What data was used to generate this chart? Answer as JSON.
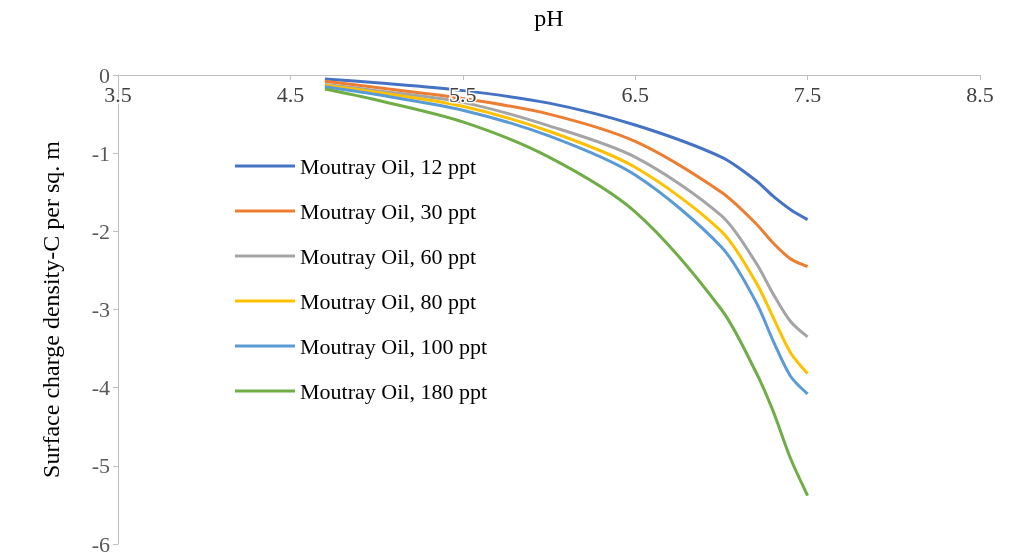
{
  "chart_data": {
    "type": "line",
    "xlabel": "pH",
    "ylabel": "Surface charge density-C per sq. m",
    "x": [
      4.7,
      5.0,
      5.5,
      6.0,
      6.5,
      7.0,
      7.2,
      7.3,
      7.4,
      7.5
    ],
    "xlim": [
      3.5,
      8.5
    ],
    "xticks": [
      3.5,
      4.5,
      5.5,
      6.5,
      7.5,
      8.5
    ],
    "ylim": [
      -6,
      0
    ],
    "yticks": [
      -6,
      -5,
      -4,
      -3,
      -2,
      -1,
      0
    ],
    "grid": false,
    "legend": "left",
    "marker": "none",
    "line_style": "solid",
    "series": [
      {
        "name": "Moutray Oil, 12 ppt",
        "color": "#4472c4",
        "values": [
          -0.05,
          -0.1,
          -0.2,
          -0.36,
          -0.64,
          -1.05,
          -1.35,
          -1.55,
          -1.72,
          -1.85
        ]
      },
      {
        "name": "Moutray Oil, 30 ppt",
        "color": "#ed7d31",
        "values": [
          -0.08,
          -0.16,
          -0.3,
          -0.5,
          -0.85,
          -1.5,
          -1.9,
          -2.15,
          -2.35,
          -2.45
        ]
      },
      {
        "name": "Moutray Oil, 60 ppt",
        "color": "#a5a5a5",
        "values": [
          -0.12,
          -0.2,
          -0.35,
          -0.65,
          -1.05,
          -1.8,
          -2.4,
          -2.8,
          -3.15,
          -3.35
        ]
      },
      {
        "name": "Moutray Oil, 80 ppt",
        "color": "#ffc000",
        "values": [
          -0.13,
          -0.22,
          -0.4,
          -0.72,
          -1.18,
          -2.0,
          -2.65,
          -3.1,
          -3.55,
          -3.82
        ]
      },
      {
        "name": "Moutray Oil, 100 ppt",
        "color": "#5b9bd5",
        "values": [
          -0.15,
          -0.25,
          -0.45,
          -0.78,
          -1.28,
          -2.2,
          -2.9,
          -3.4,
          -3.85,
          -4.08
        ]
      },
      {
        "name": "Moutray Oil, 180 ppt",
        "color": "#70ad47",
        "values": [
          -0.18,
          -0.32,
          -0.6,
          -1.05,
          -1.75,
          -3.0,
          -3.8,
          -4.3,
          -4.9,
          -5.38
        ]
      }
    ]
  }
}
